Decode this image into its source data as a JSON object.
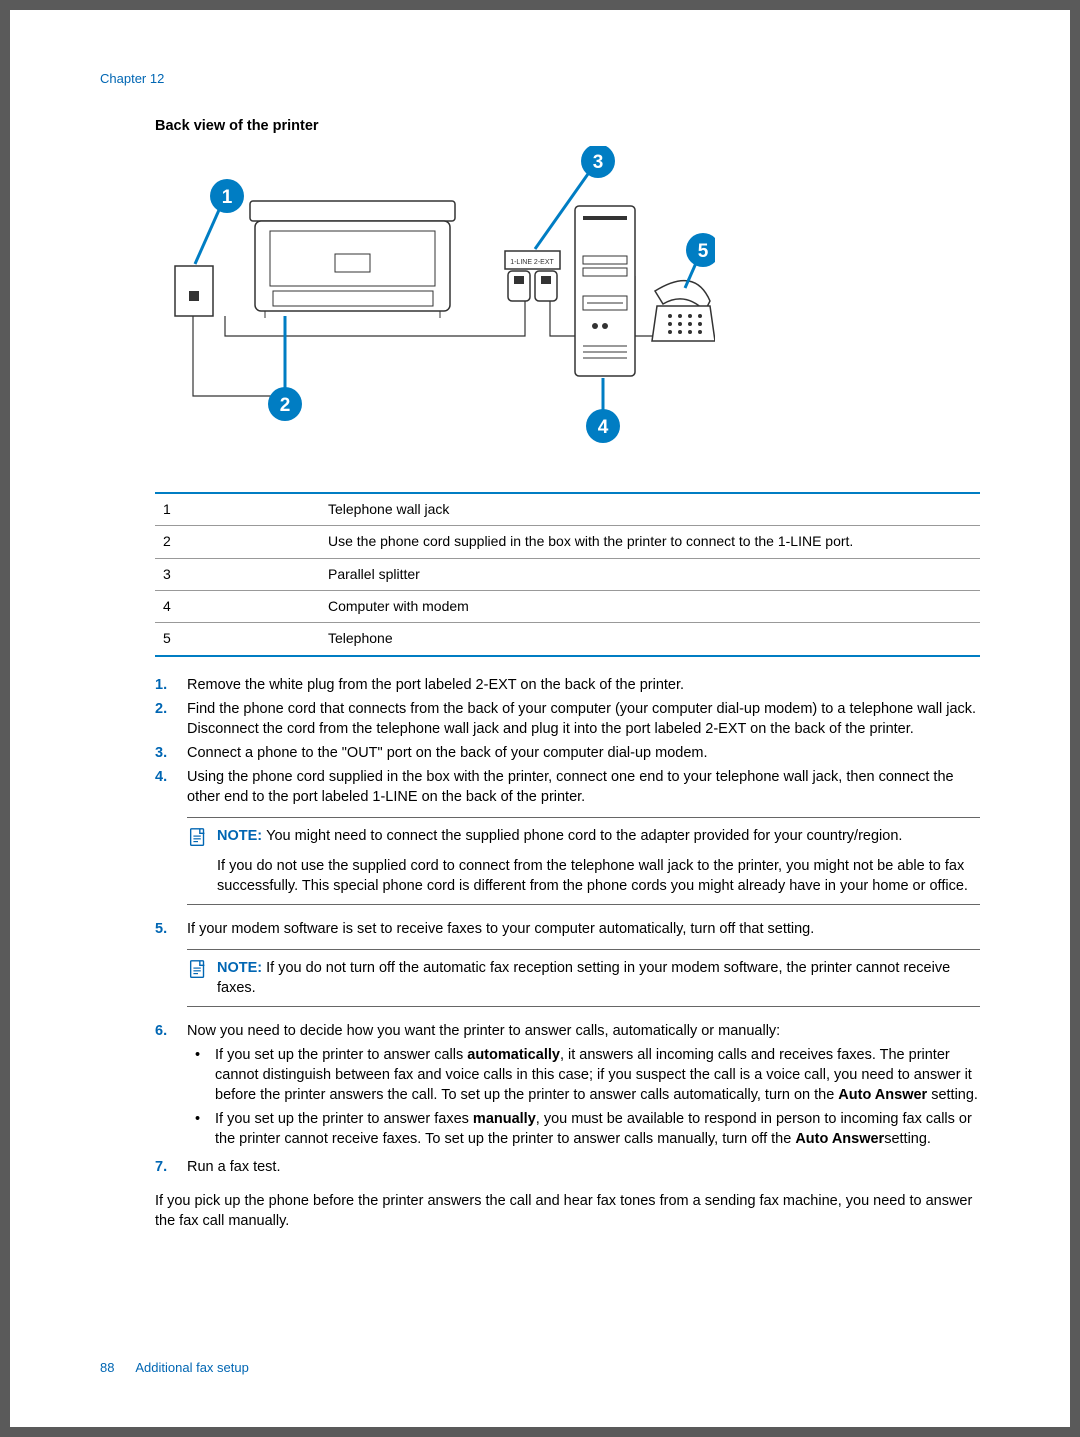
{
  "header": {
    "chapter": "Chapter 12"
  },
  "section_title": "Back view of the printer",
  "diagram": {
    "callout_bg": "#007dc3",
    "callout_text": "#ffffff",
    "line_color": "#333333",
    "labels": {
      "c1": "1",
      "c2": "2",
      "c3": "3",
      "c4": "4",
      "c5": "5"
    },
    "port_label": "1-LINE  2-EXT"
  },
  "callouts": {
    "rows": [
      {
        "num": "1",
        "text": "Telephone wall jack"
      },
      {
        "num": "2",
        "text": "Use the phone cord supplied in the box with the printer to connect to the 1-LINE port."
      },
      {
        "num": "3",
        "text": "Parallel splitter"
      },
      {
        "num": "4",
        "text": "Computer with modem"
      },
      {
        "num": "5",
        "text": "Telephone"
      }
    ]
  },
  "steps": {
    "s1": {
      "marker": "1.",
      "text": "Remove the white plug from the port labeled 2-EXT on the back of the printer."
    },
    "s2": {
      "marker": "2.",
      "text": "Find the phone cord that connects from the back of your computer (your computer dial-up modem) to a telephone wall jack. Disconnect the cord from the telephone wall jack and plug it into the port labeled 2-EXT on the back of the printer."
    },
    "s3": {
      "marker": "3.",
      "text": "Connect a phone to the \"OUT\" port on the back of your computer dial-up modem."
    },
    "s4": {
      "marker": "4.",
      "text": "Using the phone cord supplied in the box with the printer, connect one end to your telephone wall jack, then connect the other end to the port labeled 1-LINE on the back of the printer."
    },
    "s5": {
      "marker": "5.",
      "text": "If your modem software is set to receive faxes to your computer automatically, turn off that setting."
    },
    "s6": {
      "marker": "6.",
      "intro": "Now you need to decide how you want the printer to answer calls, automatically or manually:"
    },
    "s7": {
      "marker": "7.",
      "text": "Run a fax test."
    }
  },
  "note1": {
    "label": "NOTE:",
    "p1": "You might need to connect the supplied phone cord to the adapter provided for your country/region.",
    "p2": "If you do not use the supplied cord to connect from the telephone wall jack to the printer, you might not be able to fax successfully. This special phone cord is different from the phone cords you might already have in your home or office."
  },
  "note2": {
    "label": "NOTE:",
    "p1": "If you do not turn off the automatic fax reception setting in your modem software, the printer cannot receive faxes."
  },
  "bullets": {
    "b1a": "If you set up the printer to answer calls ",
    "b1_bold": "automatically",
    "b1b": ", it answers all incoming calls and receives faxes. The printer cannot distinguish between fax and voice calls in this case; if you suspect the call is a voice call, you need to answer it before the printer answers the call. To set up the printer to answer calls automatically, turn on the ",
    "b1_bold2": "Auto Answer",
    "b1c": " setting.",
    "b2a": "If you set up the printer to answer faxes ",
    "b2_bold": "manually",
    "b2b": ", you must be available to respond in person to incoming fax calls or the printer cannot receive faxes. To set up the printer to answer calls manually, turn off the ",
    "b2_bold2": "Auto Answer",
    "b2c": "setting."
  },
  "closing": "If you pick up the phone before the printer answers the call and hear fax tones from a sending fax machine, you need to answer the fax call manually.",
  "footer": {
    "page": "88",
    "section": "Additional fax setup"
  }
}
